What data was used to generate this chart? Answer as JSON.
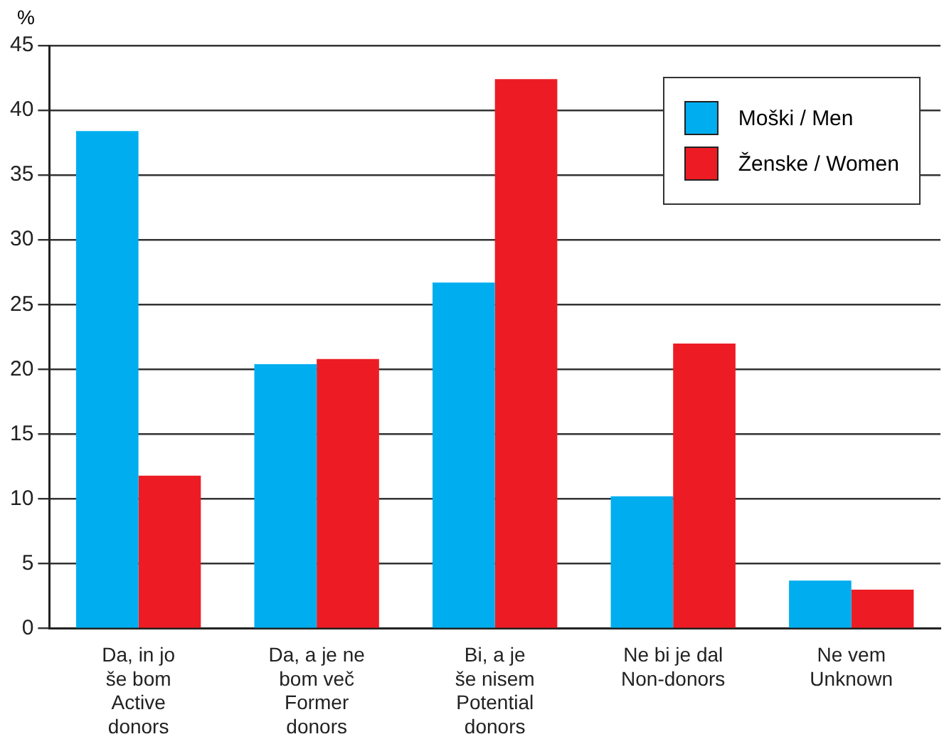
{
  "chart_data": {
    "type": "bar",
    "ylabel": "%",
    "categories": [
      "Da, in jo\nše bom\nActive\ndonors",
      "Da, a je ne\nbom več\nFormer\ndonors",
      "Bi, a je\nše nisem\nPotential\ndonors",
      "Ne bi je dal\nNon-donors",
      "Ne vem\nUnknown"
    ],
    "series": [
      {
        "name": "Moški / Men",
        "color": "#00aeef",
        "values": [
          38.4,
          20.4,
          26.7,
          10.2,
          3.7
        ]
      },
      {
        "name": "Ženske / Women",
        "color": "#ed1c24",
        "values": [
          11.8,
          20.8,
          42.4,
          22.0,
          3.0
        ]
      }
    ],
    "ylim": [
      0,
      45
    ],
    "yticks": [
      0,
      5,
      10,
      15,
      20,
      25,
      30,
      35,
      40,
      45
    ],
    "grid": "y",
    "legend": "top right"
  }
}
